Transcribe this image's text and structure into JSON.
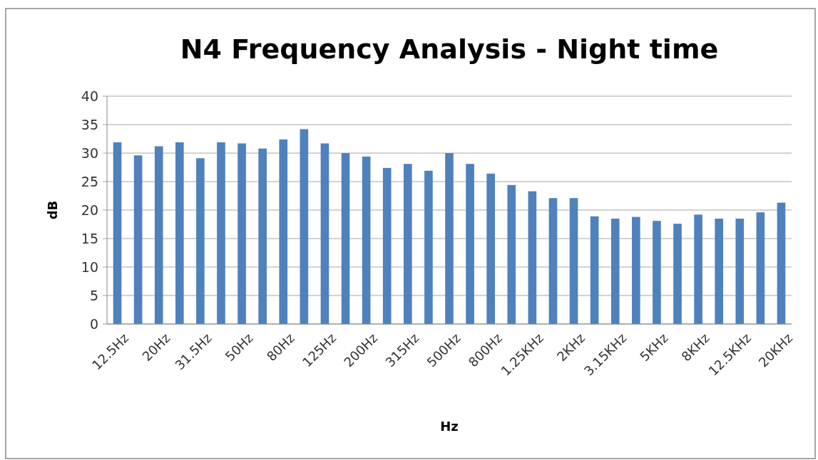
{
  "chart_data": {
    "type": "bar",
    "title": "N4 Frequency Analysis - Night time",
    "xlabel": "Hz",
    "ylabel": "dB",
    "categories": [
      "12.5Hz",
      null,
      "20Hz",
      null,
      "31.5Hz",
      null,
      "50Hz",
      null,
      "80Hz",
      null,
      "125Hz",
      null,
      "200Hz",
      null,
      "315Hz",
      null,
      "500Hz",
      null,
      "800Hz",
      null,
      "1.25KHz",
      null,
      "2KHz",
      null,
      "3.15KHz",
      null,
      "5KHz",
      null,
      "8KHz",
      null,
      "12.5KHz",
      null,
      "20KHz"
    ],
    "values": [
      31.9,
      29.6,
      31.2,
      31.9,
      29.1,
      31.9,
      31.7,
      30.8,
      32.4,
      34.2,
      31.7,
      30.0,
      29.4,
      27.4,
      28.1,
      26.9,
      30.0,
      28.1,
      26.4,
      24.4,
      23.3,
      22.1,
      22.1,
      18.9,
      18.5,
      18.8,
      18.1,
      17.6,
      19.2,
      18.5,
      18.5,
      19.6,
      21.3
    ],
    "color": "#4f81bd",
    "ylim": [
      0,
      40
    ],
    "yticks": [
      0,
      5,
      10,
      15,
      20,
      25,
      30,
      35,
      40
    ],
    "grid": "y"
  }
}
